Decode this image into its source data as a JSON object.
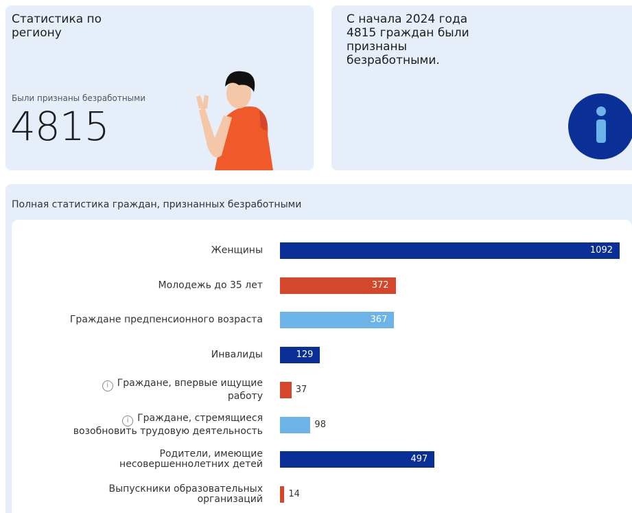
{
  "cards": {
    "region": {
      "title": "Статистика по\nрегиону",
      "label": "Были признаны безработными",
      "value": 4815
    },
    "info": {
      "text": "С начала 2024 года\n4815 граждан были\nпризнаны\nбезработными."
    }
  },
  "chart_data": {
    "type": "bar",
    "orientation": "horizontal",
    "title": "Полная статистика граждан, признанных безработными",
    "categories": [
      "Женщины",
      "Молодежь до 35 лет",
      "Граждане предпенсионного возраста",
      "Инвалиды",
      "Граждане, впервые ищущие\nработу",
      "Граждане, стремящиеся\nвозобновить трудовую деятельность",
      "Родители, имеющие\nнесовершеннолетних детей",
      "Выпускники образовательных\nорганизаций"
    ],
    "values": [
      1092,
      372,
      367,
      129,
      37,
      98,
      497,
      14
    ],
    "colors": [
      "#0a2f96",
      "#d4472a",
      "#6cb3e8",
      "#0a2f96",
      "#d4472a",
      "#6cb3e8",
      "#0a2f96",
      "#d4472a"
    ],
    "info_icon": [
      false,
      false,
      false,
      false,
      true,
      true,
      false,
      false
    ]
  }
}
